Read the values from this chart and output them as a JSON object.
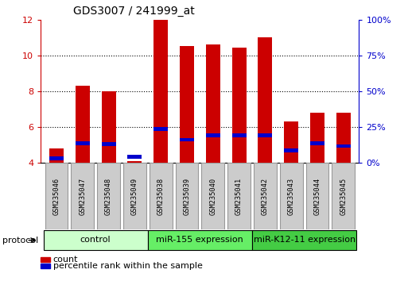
{
  "title": "GDS3007 / 241999_at",
  "samples": [
    "GSM235046",
    "GSM235047",
    "GSM235048",
    "GSM235049",
    "GSM235038",
    "GSM235039",
    "GSM235040",
    "GSM235041",
    "GSM235042",
    "GSM235043",
    "GSM235044",
    "GSM235045"
  ],
  "count_values": [
    4.8,
    8.3,
    8.0,
    4.1,
    12.0,
    10.55,
    10.6,
    10.45,
    11.0,
    6.3,
    6.8,
    6.8
  ],
  "percentile_values": [
    4.25,
    5.1,
    5.05,
    4.35,
    5.9,
    5.3,
    5.55,
    5.55,
    5.55,
    4.7,
    5.1,
    4.95
  ],
  "count_color": "#cc0000",
  "percentile_color": "#0000cc",
  "ylim_left": [
    4,
    12
  ],
  "ylim_right": [
    0,
    100
  ],
  "yticks_left": [
    4,
    6,
    8,
    10,
    12
  ],
  "yticks_right": [
    0,
    25,
    50,
    75,
    100
  ],
  "ytick_labels_right": [
    "0%",
    "25%",
    "50%",
    "75%",
    "100%"
  ],
  "groups": [
    {
      "label": "control",
      "start": 0,
      "end": 4,
      "color": "#ccffcc"
    },
    {
      "label": "miR-155 expression",
      "start": 4,
      "end": 8,
      "color": "#66ee66"
    },
    {
      "label": "miR-K12-11 expression",
      "start": 8,
      "end": 12,
      "color": "#44cc44"
    }
  ],
  "bar_width": 0.55,
  "legend_count": "count",
  "legend_percentile": "percentile rank within the sample",
  "protocol_label": "protocol",
  "background_color": "#ffffff",
  "tick_color_left": "#cc0000",
  "tick_color_right": "#0000cc",
  "sample_box_color": "#cccccc",
  "sample_box_edge": "#999999"
}
